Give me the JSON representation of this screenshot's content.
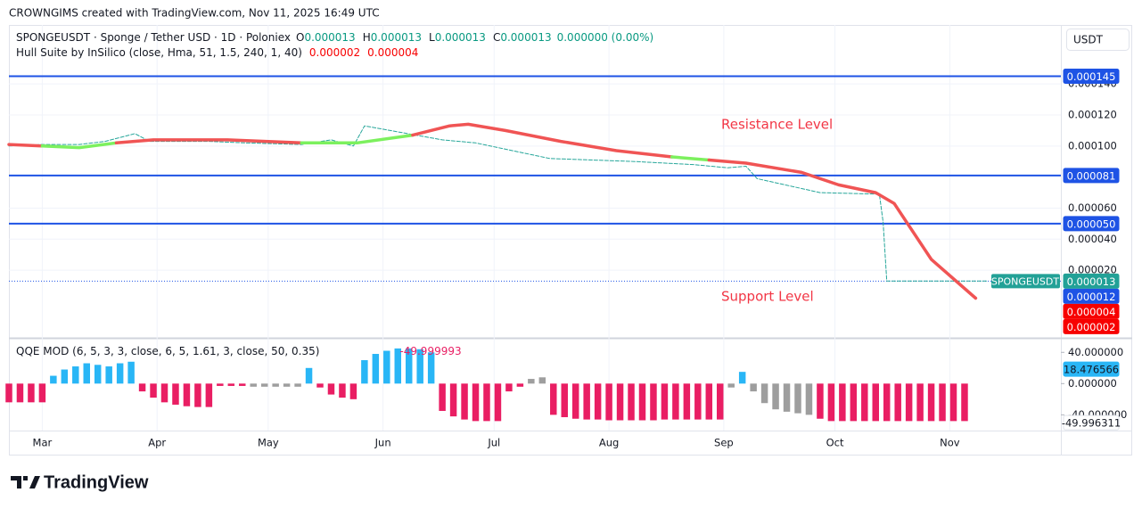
{
  "header": {
    "credit": "CROWNGIMS created with TradingView.com, Nov 11, 2025 16:49 UTC",
    "currency": "USDT"
  },
  "legend": {
    "symbol": "SPONGEUSDT · Sponge / Tether USD · 1D · Poloniex",
    "o_label": "O",
    "o": "0.000013",
    "h_label": "H",
    "h": "0.000013",
    "l_label": "L",
    "l": "0.000013",
    "c_label": "C",
    "c": "0.000013",
    "change": "0.000000 (0.00%)",
    "indicator": "Hull Suite by InSilico (close, Hma, 51, 1.5, 240, 1, 40)",
    "indicator_values": [
      "0.000002",
      "0.000004"
    ]
  },
  "annotations": [
    "Resistance Level",
    "Support Level"
  ],
  "chart_data": [
    {
      "type": "line",
      "xlim": [
        -9,
        275
      ],
      "xticks": [
        {
          "value": 0,
          "label": "Mar"
        },
        {
          "value": 31,
          "label": "Apr"
        },
        {
          "value": 61,
          "label": "May"
        },
        {
          "value": 92,
          "label": "Jun"
        },
        {
          "value": 122,
          "label": "Jul"
        },
        {
          "value": 153,
          "label": "Aug"
        },
        {
          "value": 184,
          "label": "Sep"
        },
        {
          "value": 214,
          "label": "Oct"
        },
        {
          "value": 245,
          "label": "Nov"
        }
      ],
      "ylim": [
        -2.3e-05,
        0.000178
      ],
      "yticks": [
        {
          "value": 2e-05,
          "label": "0.000020"
        },
        {
          "value": 4e-05,
          "label": "0.000040"
        },
        {
          "value": 6e-05,
          "label": "0.000060"
        },
        {
          "value": 0.0001,
          "label": "0.000100"
        },
        {
          "value": 0.00012,
          "label": "0.000120"
        },
        {
          "value": 0.00014,
          "label": "0.000140"
        }
      ],
      "grid": true,
      "series": [
        {
          "color": "#26a69a",
          "style": "dashed",
          "x": [
            -9,
            0,
            10,
            17,
            25,
            29,
            45,
            55,
            70,
            78,
            84,
            87,
            108,
            117,
            137,
            160,
            176,
            185,
            190,
            193,
            210,
            226,
            227,
            228,
            255
          ],
          "values": [
            0.0001,
            0.000101,
            0.000101,
            0.000103,
            0.000108,
            0.000103,
            0.000103,
            0.000102,
            0.000101,
            0.000104,
            0.0001,
            0.000113,
            0.000104,
            0.000102,
            9.2e-05,
            9e-05,
            8.8e-05,
            8.6e-05,
            8.7e-05,
            7.9e-05,
            7e-05,
            6.9e-05,
            5.1e-05,
            1.3e-05,
            1.3e-05
          ]
        },
        {
          "style": "solid",
          "x": [
            -9,
            0,
            10,
            20,
            30,
            50,
            70,
            85,
            100,
            110,
            115,
            125,
            140,
            155,
            170,
            180,
            190,
            205,
            215,
            225,
            230,
            240,
            252
          ],
          "values": [
            0.000101,
            0.0001,
            9.9e-05,
            0.000102,
            0.000104,
            0.000104,
            0.000102,
            0.000102,
            0.000107,
            0.000113,
            0.000114,
            0.00011,
            0.000103,
            9.7e-05,
            9.3e-05,
            9.1e-05,
            8.9e-05,
            8.3e-05,
            7.5e-05,
            7e-05,
            6.3e-05,
            2.7e-05,
            2e-06
          ],
          "point_colors": [
            "#f05454",
            "#f05454",
            "#7cf05e",
            "#7cf05e",
            "#f05454",
            "#f05454",
            "#f05454",
            "#7cf05e",
            "#7cf05e",
            "#f05454",
            "#f05454",
            "#f05454",
            "#f05454",
            "#f05454",
            "#f05454",
            "#7cf05e",
            "#f05454",
            "#f05454",
            "#f05454",
            "#f05454",
            "#f05454",
            "#f05454",
            "#f05454"
          ]
        }
      ],
      "levels": [
        {
          "value": 0.000145,
          "label": "0.000145",
          "color": "#1e53e5"
        },
        {
          "value": 8.1e-05,
          "label": "0.000081",
          "color": "#1e53e5"
        },
        {
          "value": 5e-05,
          "label": "0.000050",
          "color": "#1e53e5"
        }
      ],
      "last_price": {
        "symbol": "SPONGEUSDT",
        "value": 1.3e-05,
        "label": "0.000013",
        "color": "#22a197"
      },
      "price_tags": [
        {
          "value": 1.2e-05,
          "label": "0.000012",
          "color": "#1e53e5"
        },
        {
          "value": 4e-06,
          "label": "0.000004",
          "color": "#f70000"
        },
        {
          "value": 2e-06,
          "label": "0.000002",
          "color": "#f70000"
        }
      ]
    },
    {
      "type": "bar",
      "title": "QQE MOD (6, 5, 3, 3, close, 6, 5, 1.61, 3, close, 50, 0.35)",
      "legend_value": "-49.999993",
      "xlim": [
        -9,
        275
      ],
      "ylim": [
        -59,
        54
      ],
      "yticks": [
        {
          "value": 40,
          "label": "40.000000"
        },
        {
          "value": 0,
          "label": "0.000000"
        },
        {
          "value": -40,
          "label": "-40.000000"
        }
      ],
      "x": [
        -9,
        -6,
        -3,
        0,
        3,
        6,
        9,
        12,
        15,
        18,
        21,
        24,
        27,
        30,
        33,
        36,
        39,
        42,
        45,
        48,
        51,
        54,
        57,
        60,
        63,
        66,
        69,
        72,
        75,
        78,
        81,
        84,
        87,
        90,
        93,
        96,
        99,
        102,
        105,
        108,
        111,
        114,
        117,
        120,
        123,
        126,
        129,
        132,
        135,
        138,
        141,
        144,
        147,
        150,
        153,
        156,
        159,
        162,
        165,
        168,
        171,
        174,
        177,
        180,
        183,
        186,
        189,
        192,
        195,
        198,
        201,
        204,
        207,
        210,
        213,
        216,
        219,
        222,
        225,
        228,
        231,
        234,
        237,
        240,
        243,
        246,
        249
      ],
      "values": [
        -24,
        -24,
        -24,
        -24,
        10,
        18,
        22,
        26,
        24,
        22,
        26,
        28,
        -10,
        -18,
        -24,
        -27,
        -29,
        -30,
        -30,
        -3,
        -3,
        -3,
        -4,
        -4,
        -4,
        -4,
        -4,
        20,
        -5,
        -14,
        -18,
        -20,
        30,
        38,
        42,
        45,
        45,
        44,
        40,
        -35,
        -42,
        -46,
        -48,
        -48,
        -48,
        -10,
        -4,
        6,
        8,
        -40,
        -43,
        -45,
        -46,
        -46,
        -47,
        -47,
        -47,
        -47,
        -47,
        -46,
        -46,
        -46,
        -46,
        -46,
        -46,
        -5,
        15,
        -10,
        -25,
        -33,
        -36,
        -38,
        -40,
        -45,
        -48,
        -48,
        -48,
        -48,
        -48,
        -48,
        -48,
        -48,
        -48,
        -48,
        -48,
        -48,
        -48
      ],
      "colors": [
        "#e91e63",
        "#e91e63",
        "#e91e63",
        "#e91e63",
        "#29b6f6",
        "#29b6f6",
        "#29b6f6",
        "#29b6f6",
        "#29b6f6",
        "#29b6f6",
        "#29b6f6",
        "#29b6f6",
        "#e91e63",
        "#e91e63",
        "#e91e63",
        "#e91e63",
        "#e91e63",
        "#e91e63",
        "#e91e63",
        "#e91e63",
        "#e91e63",
        "#e91e63",
        "#9e9e9e",
        "#9e9e9e",
        "#9e9e9e",
        "#9e9e9e",
        "#9e9e9e",
        "#29b6f6",
        "#e91e63",
        "#e91e63",
        "#e91e63",
        "#e91e63",
        "#29b6f6",
        "#29b6f6",
        "#29b6f6",
        "#29b6f6",
        "#29b6f6",
        "#29b6f6",
        "#29b6f6",
        "#e91e63",
        "#e91e63",
        "#e91e63",
        "#e91e63",
        "#e91e63",
        "#e91e63",
        "#e91e63",
        "#e91e63",
        "#9e9e9e",
        "#9e9e9e",
        "#e91e63",
        "#e91e63",
        "#e91e63",
        "#e91e63",
        "#e91e63",
        "#e91e63",
        "#e91e63",
        "#e91e63",
        "#e91e63",
        "#e91e63",
        "#e91e63",
        "#e91e63",
        "#e91e63",
        "#e91e63",
        "#e91e63",
        "#e91e63",
        "#9e9e9e",
        "#29b6f6",
        "#9e9e9e",
        "#9e9e9e",
        "#9e9e9e",
        "#9e9e9e",
        "#9e9e9e",
        "#9e9e9e",
        "#e91e63",
        "#e91e63",
        "#e91e63",
        "#e91e63",
        "#e91e63",
        "#e91e63",
        "#e91e63",
        "#e91e63",
        "#e91e63",
        "#e91e63",
        "#e91e63",
        "#e91e63",
        "#e91e63",
        "#e91e63"
      ],
      "value_tags": [
        {
          "value": 18.476566,
          "label": "18.476566",
          "color": "#29b6f6",
          "text_color": "#131722"
        },
        {
          "value": -49.996311,
          "label": "-49.996311",
          "color": "#ffffff",
          "text_color": "#131722"
        }
      ]
    }
  ],
  "footer": {
    "logo": "TradingView"
  }
}
